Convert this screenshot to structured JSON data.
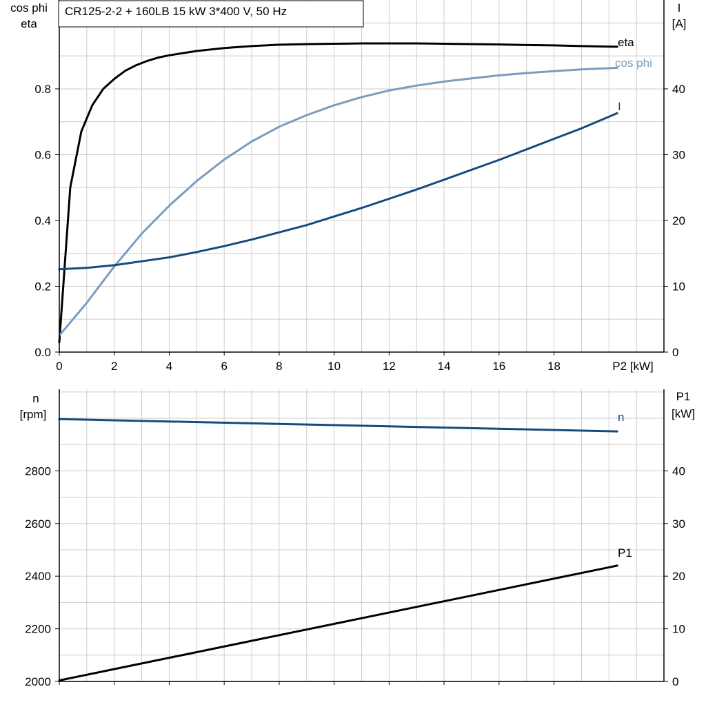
{
  "chart_data": [
    {
      "type": "line",
      "title": "CR125-2-2 + 160LB   15 kW   3*400 V, 50 Hz",
      "xlabel": "P2 [kW]",
      "xlim": [
        0,
        22
      ],
      "xticks": [
        0,
        2,
        4,
        6,
        8,
        10,
        12,
        14,
        16,
        18
      ],
      "grid": true,
      "y_left": {
        "label_lines": [
          "cos phi",
          "eta"
        ],
        "lim": [
          0,
          1.07
        ],
        "ticks": [
          0.0,
          0.2,
          0.4,
          0.6,
          0.8
        ],
        "tick_labels": [
          "0.0",
          "0.2",
          "0.4",
          "0.6",
          "0.8"
        ]
      },
      "y_right": {
        "label_lines": [
          "I",
          "[A]"
        ],
        "lim": [
          0,
          53.5
        ],
        "ticks": [
          0,
          10,
          20,
          30,
          40
        ],
        "tick_labels": [
          "0",
          "10",
          "20",
          "30",
          "40"
        ]
      },
      "series": [
        {
          "name": "eta",
          "axis": "left",
          "color": "#000000",
          "x": [
            0,
            0.4,
            0.8,
            1.2,
            1.6,
            2.0,
            2.4,
            2.8,
            3.2,
            3.6,
            4,
            5,
            6,
            7,
            8,
            9,
            10,
            11,
            12,
            13,
            14,
            15,
            16,
            17,
            18,
            19,
            20.3
          ],
          "y": [
            0.03,
            0.5,
            0.67,
            0.75,
            0.8,
            0.83,
            0.855,
            0.872,
            0.885,
            0.895,
            0.902,
            0.915,
            0.924,
            0.93,
            0.934,
            0.936,
            0.937,
            0.938,
            0.938,
            0.938,
            0.937,
            0.936,
            0.935,
            0.933,
            0.932,
            0.93,
            0.928
          ]
        },
        {
          "name": "cos phi",
          "axis": "left",
          "color": "#7a9cbd",
          "x": [
            0,
            1,
            2,
            3,
            4,
            5,
            6,
            7,
            8,
            9,
            10,
            11,
            12,
            13,
            14,
            15,
            16,
            17,
            18,
            19,
            20.3
          ],
          "y": [
            0.05,
            0.15,
            0.26,
            0.36,
            0.445,
            0.52,
            0.585,
            0.64,
            0.685,
            0.72,
            0.75,
            0.775,
            0.795,
            0.81,
            0.822,
            0.832,
            0.841,
            0.848,
            0.854,
            0.859,
            0.864
          ]
        },
        {
          "name": "I",
          "axis": "right",
          "color": "#174a7c",
          "x": [
            0,
            1,
            2,
            3,
            4,
            5,
            6,
            7,
            8,
            9,
            10,
            11,
            12,
            13,
            14,
            15,
            16,
            17,
            18,
            19,
            20.3
          ],
          "y": [
            12.6,
            12.8,
            13.2,
            13.8,
            14.4,
            15.2,
            16.1,
            17.1,
            18.2,
            19.3,
            20.6,
            21.9,
            23.3,
            24.7,
            26.2,
            27.7,
            29.2,
            30.8,
            32.4,
            34.0,
            36.3
          ]
        }
      ],
      "series_labels": {
        "eta": "eta",
        "cos_phi": "cos phi",
        "I": "I"
      }
    },
    {
      "type": "line",
      "xlim": [
        0,
        22
      ],
      "xticks": [
        0,
        2,
        4,
        6,
        8,
        10,
        12,
        14,
        16,
        18
      ],
      "grid": true,
      "y_left": {
        "label_lines": [
          "n",
          "[rpm]"
        ],
        "lim": [
          2000,
          3110
        ],
        "ticks": [
          2000,
          2200,
          2400,
          2600,
          2800
        ],
        "tick_labels": [
          "2000",
          "2200",
          "2400",
          "2600",
          "2800"
        ]
      },
      "y_right": {
        "label_lines": [
          "P1",
          "[kW]"
        ],
        "lim": [
          0,
          55.5
        ],
        "ticks": [
          0,
          10,
          20,
          30,
          40
        ],
        "tick_labels": [
          "0",
          "10",
          "20",
          "30",
          "40"
        ]
      },
      "series": [
        {
          "name": "n",
          "axis": "left",
          "color": "#174a7c",
          "x": [
            0,
            20.3
          ],
          "y": [
            2997,
            2950
          ]
        },
        {
          "name": "P1",
          "axis": "right",
          "color": "#000000",
          "x": [
            0,
            20.3
          ],
          "y": [
            0.2,
            22.0
          ]
        }
      ],
      "series_labels": {
        "n": "n",
        "P1": "P1"
      }
    }
  ]
}
